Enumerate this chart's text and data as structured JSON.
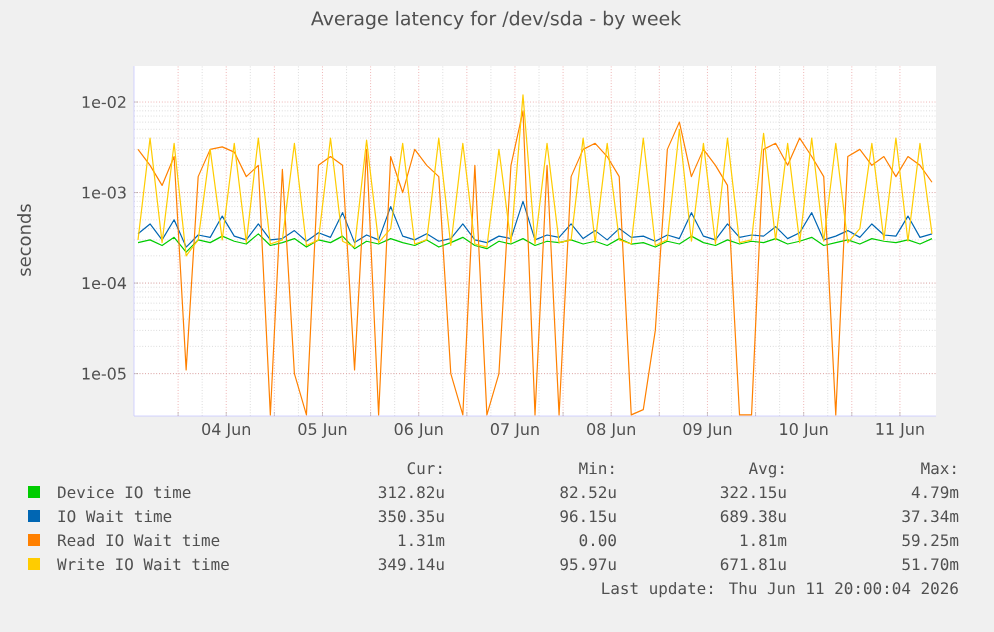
{
  "chart_data": {
    "type": "line",
    "title": "Average latency for /dev/sda - by week",
    "ylabel": "seconds",
    "log": "y",
    "grid": true,
    "legend": "bottom",
    "xlim": [
      "2026-06-03T13:00",
      "2026-06-11T21:00"
    ],
    "ylim": [
      3.4e-06,
      0.025
    ],
    "yticks": [
      {
        "value": 1e-05,
        "label": "1e-05"
      },
      {
        "value": 0.0001,
        "label": "1e-04"
      },
      {
        "value": 0.001,
        "label": "1e-03"
      },
      {
        "value": 0.01,
        "label": "1e-02"
      }
    ],
    "xticks": [
      {
        "value": "2026-06-04T00:00",
        "label": null
      },
      {
        "value": "2026-06-04T12:00",
        "label": "04 Jun"
      },
      {
        "value": "2026-06-05T00:00",
        "label": null
      },
      {
        "value": "2026-06-05T12:00",
        "label": "05 Jun"
      },
      {
        "value": "2026-06-06T00:00",
        "label": null
      },
      {
        "value": "2026-06-06T12:00",
        "label": "06 Jun"
      },
      {
        "value": "2026-06-07T00:00",
        "label": null
      },
      {
        "value": "2026-06-07T12:00",
        "label": "07 Jun"
      },
      {
        "value": "2026-06-08T00:00",
        "label": null
      },
      {
        "value": "2026-06-08T12:00",
        "label": "08 Jun"
      },
      {
        "value": "2026-06-09T00:00",
        "label": null
      },
      {
        "value": "2026-06-09T12:00",
        "label": "09 Jun"
      },
      {
        "value": "2026-06-10T00:00",
        "label": null
      },
      {
        "value": "2026-06-10T12:00",
        "label": "10 Jun"
      },
      {
        "value": "2026-06-11T00:00",
        "label": null
      },
      {
        "value": "2026-06-11T12:00",
        "label": "11 Jun"
      }
    ],
    "x": [
      "2026-06-03T14:00",
      "2026-06-03T17:00",
      "2026-06-03T20:00",
      "2026-06-03T23:00",
      "2026-06-04T02:00",
      "2026-06-04T05:00",
      "2026-06-04T08:00",
      "2026-06-04T11:00",
      "2026-06-04T14:00",
      "2026-06-04T17:00",
      "2026-06-04T20:00",
      "2026-06-04T23:00",
      "2026-06-05T02:00",
      "2026-06-05T05:00",
      "2026-06-05T08:00",
      "2026-06-05T11:00",
      "2026-06-05T14:00",
      "2026-06-05T17:00",
      "2026-06-05T20:00",
      "2026-06-05T23:00",
      "2026-06-06T02:00",
      "2026-06-06T05:00",
      "2026-06-06T08:00",
      "2026-06-06T11:00",
      "2026-06-06T14:00",
      "2026-06-06T17:00",
      "2026-06-06T20:00",
      "2026-06-06T23:00",
      "2026-06-07T02:00",
      "2026-06-07T05:00",
      "2026-06-07T08:00",
      "2026-06-07T11:00",
      "2026-06-07T14:00",
      "2026-06-07T17:00",
      "2026-06-07T20:00",
      "2026-06-07T23:00",
      "2026-06-08T02:00",
      "2026-06-08T05:00",
      "2026-06-08T08:00",
      "2026-06-08T11:00",
      "2026-06-08T14:00",
      "2026-06-08T17:00",
      "2026-06-08T20:00",
      "2026-06-08T23:00",
      "2026-06-09T02:00",
      "2026-06-09T05:00",
      "2026-06-09T08:00",
      "2026-06-09T11:00",
      "2026-06-09T14:00",
      "2026-06-09T17:00",
      "2026-06-09T20:00",
      "2026-06-09T23:00",
      "2026-06-10T02:00",
      "2026-06-10T05:00",
      "2026-06-10T08:00",
      "2026-06-10T11:00",
      "2026-06-10T14:00",
      "2026-06-10T17:00",
      "2026-06-10T20:00",
      "2026-06-10T23:00",
      "2026-06-11T02:00",
      "2026-06-11T05:00",
      "2026-06-11T08:00",
      "2026-06-11T11:00",
      "2026-06-11T14:00",
      "2026-06-11T17:00",
      "2026-06-11T20:00"
    ],
    "series": [
      {
        "name": "Device IO time",
        "color": "#00cc00",
        "values": [
          0.00028,
          0.0003,
          0.00026,
          0.00032,
          0.00022,
          0.0003,
          0.00028,
          0.00033,
          0.00029,
          0.00027,
          0.00035,
          0.00026,
          0.00028,
          0.00031,
          0.00025,
          0.0003,
          0.00028,
          0.00033,
          0.00024,
          0.00029,
          0.00027,
          0.00031,
          0.00028,
          0.00026,
          0.0003,
          0.00025,
          0.00028,
          0.00032,
          0.00026,
          0.00024,
          0.00029,
          0.00027,
          0.00031,
          0.00026,
          0.00029,
          0.00028,
          0.0003,
          0.00027,
          0.00029,
          0.00026,
          0.00031,
          0.00027,
          0.00028,
          0.00025,
          0.00029,
          0.00027,
          0.00033,
          0.00028,
          0.00026,
          0.0003,
          0.00027,
          0.00029,
          0.00028,
          0.00031,
          0.00027,
          0.00029,
          0.00032,
          0.00026,
          0.00028,
          0.0003,
          0.00027,
          0.00031,
          0.00029,
          0.00028,
          0.0003,
          0.00027,
          0.00031
        ]
      },
      {
        "name": "IO Wait time",
        "color": "#0066b3",
        "values": [
          0.00035,
          0.00045,
          0.0003,
          0.0005,
          0.00025,
          0.00034,
          0.00032,
          0.00055,
          0.00033,
          0.0003,
          0.00045,
          0.0003,
          0.00031,
          0.00038,
          0.00029,
          0.00036,
          0.00032,
          0.0006,
          0.00028,
          0.00034,
          0.0003,
          0.0007,
          0.00033,
          0.0003,
          0.00035,
          0.00029,
          0.00031,
          0.00045,
          0.0003,
          0.00028,
          0.00033,
          0.00031,
          0.0008,
          0.0003,
          0.00034,
          0.00032,
          0.00045,
          0.00031,
          0.00038,
          0.0003,
          0.0004,
          0.00032,
          0.00033,
          0.00029,
          0.00034,
          0.00031,
          0.0006,
          0.00033,
          0.0003,
          0.00045,
          0.00032,
          0.00034,
          0.00033,
          0.00042,
          0.00031,
          0.00036,
          0.0006,
          0.0003,
          0.00033,
          0.00038,
          0.00032,
          0.00045,
          0.00034,
          0.00033,
          0.00055,
          0.00032,
          0.00035
        ]
      },
      {
        "name": "Read IO Wait time",
        "color": "#ff8000",
        "values": [
          0.003,
          0.002,
          0.0012,
          0.0025,
          1.1e-05,
          0.0015,
          0.003,
          0.0032,
          0.0028,
          0.0015,
          0.002,
          3.5e-06,
          0.0018,
          1e-05,
          3.5e-06,
          0.002,
          0.0025,
          0.002,
          1.1e-05,
          0.003,
          3.5e-06,
          0.0025,
          0.001,
          0.003,
          0.002,
          0.0015,
          1e-05,
          3.5e-06,
          0.002,
          3.5e-06,
          1e-05,
          0.002,
          0.008,
          3.5e-06,
          0.002,
          3.5e-06,
          0.0015,
          0.003,
          0.0035,
          0.0025,
          0.0015,
          3.5e-06,
          4e-06,
          3e-05,
          0.003,
          0.006,
          0.0015,
          0.003,
          0.002,
          0.0012,
          3.5e-06,
          3.5e-06,
          0.003,
          0.0035,
          0.002,
          0.004,
          0.0025,
          0.0015,
          3.5e-06,
          0.0025,
          0.003,
          0.002,
          0.0025,
          0.0015,
          0.0025,
          0.002,
          0.0013
        ]
      },
      {
        "name": "Write IO Wait time",
        "color": "#ffcc00",
        "values": [
          0.0003,
          0.004,
          0.00028,
          0.0035,
          0.0002,
          0.0003,
          0.003,
          0.0003,
          0.0035,
          0.00028,
          0.004,
          0.00027,
          0.0003,
          0.0035,
          0.00026,
          0.0003,
          0.004,
          0.00029,
          0.00025,
          0.0038,
          0.00028,
          0.0004,
          0.0035,
          0.00027,
          0.0003,
          0.004,
          0.00026,
          0.0035,
          0.00027,
          0.00025,
          0.003,
          0.00028,
          0.012,
          0.00027,
          0.0035,
          0.00028,
          0.0003,
          0.004,
          0.00028,
          0.0035,
          0.0003,
          0.00027,
          0.004,
          0.00026,
          0.0003,
          0.005,
          0.00029,
          0.0035,
          0.00027,
          0.004,
          0.00028,
          0.0003,
          0.0045,
          0.0003,
          0.0035,
          0.00028,
          0.004,
          0.00029,
          0.0035,
          0.00028,
          0.0004,
          0.0035,
          0.0003,
          0.004,
          0.00029,
          0.0035,
          0.00035
        ]
      }
    ],
    "annotations": [
      "Cur:",
      "Min:",
      "Avg:",
      "Max:",
      "312.82u",
      "82.52u",
      "322.15u",
      "4.79m",
      "350.35u",
      "96.15u",
      "689.38u",
      "37.34m",
      "1.31m",
      "0.00",
      "1.81m",
      "59.25m",
      "349.14u",
      "95.97u",
      "671.81u",
      "51.70m",
      "Last update:  Thu Jun 11 20:00:04 2026"
    ]
  }
}
